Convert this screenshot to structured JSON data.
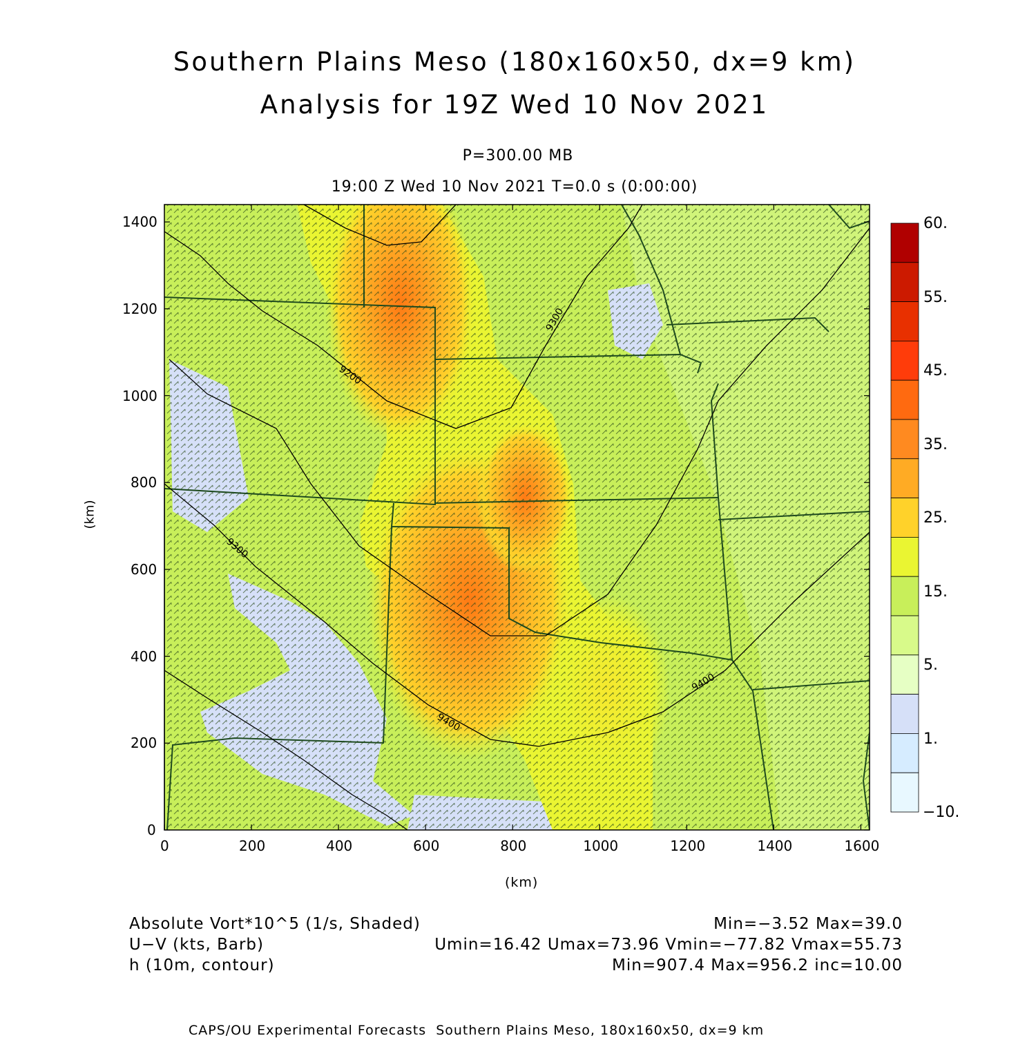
{
  "title": {
    "line1": "Southern Plains Meso (180x160x50, dx=9 km)",
    "line2": "Analysis for 19Z Wed 10 Nov 2021"
  },
  "subtitle": {
    "level": "P=300.00 MB",
    "time": "19:00 Z Wed 10 Nov 2021    T=0.0 s (0:00:00)"
  },
  "axes": {
    "xlabel": "(km)",
    "ylabel": "(km)",
    "xlim": [
      0,
      1620
    ],
    "ylim": [
      0,
      1440
    ],
    "xticks": [
      "0",
      "200",
      "400",
      "600",
      "800",
      "1000",
      "1200",
      "1400",
      "1600"
    ],
    "yticks": [
      "0",
      "200",
      "400",
      "600",
      "800",
      "1000",
      "1200",
      "1400"
    ]
  },
  "colorbar": {
    "labels": [
      "60.",
      "55.",
      "45.",
      "35.",
      "25.",
      "15.",
      "5.",
      "1.",
      "−10."
    ],
    "colors": [
      "#b00000",
      "#cc1a00",
      "#e83000",
      "#ff3c0a",
      "#ff6a10",
      "#ff8a20",
      "#ffab24",
      "#ffd22a",
      "#eaf532",
      "#c8ef5a",
      "#d8fa8a",
      "#e6ffc4",
      "#d6e0f8",
      "#d6ecff",
      "#e8f8ff"
    ]
  },
  "legend": {
    "vort_label": "Absolute Vort*10^5 (1/s, Shaded)",
    "vort_stats": "Min=−3.52 Max=39.0",
    "wind_label": "U−V (kts, Barb)",
    "wind_stats": "Umin=16.42 Umax=73.96 Vmin=−77.82 Vmax=55.73",
    "h_label": "h (10m, contour)",
    "h_stats": "Min=907.4 Max=956.2 inc=10.00"
  },
  "contour_labels": [
    "9200",
    "9300",
    "9300",
    "9400",
    "9400",
    "9400"
  ],
  "footer": "CAPS/OU Experimental Forecasts  Southern Plains Meso, 180x160x50, dx=9 km"
}
